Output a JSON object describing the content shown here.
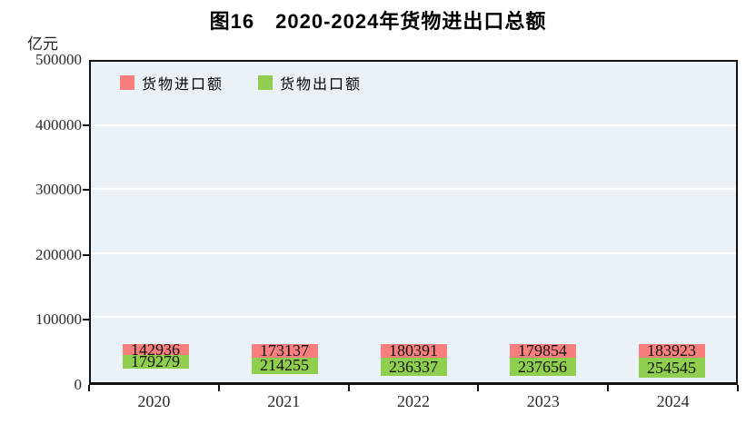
{
  "chart_data": {
    "type": "bar",
    "stacked": true,
    "title": "图16　2020-2024年货物进出口总额",
    "unit_label": "亿元",
    "categories": [
      "2020",
      "2021",
      "2022",
      "2023",
      "2024"
    ],
    "series": [
      {
        "name": "货物进口额",
        "color": "#f97e7e",
        "values": [
          142936,
          173137,
          180391,
          179854,
          183923
        ]
      },
      {
        "name": "货物出口额",
        "color": "#90ce50",
        "values": [
          179279,
          214255,
          236337,
          237656,
          254545
        ]
      }
    ],
    "ylim": [
      0,
      500000
    ],
    "ytick_step": 100000,
    "yticks": [
      "0",
      "100000",
      "200000",
      "300000",
      "400000",
      "500000"
    ],
    "grid": "horizontal-white-lines",
    "legend_position": "top-left-inside",
    "plot_background": "#eaf2f7",
    "border_color": "#111111"
  }
}
